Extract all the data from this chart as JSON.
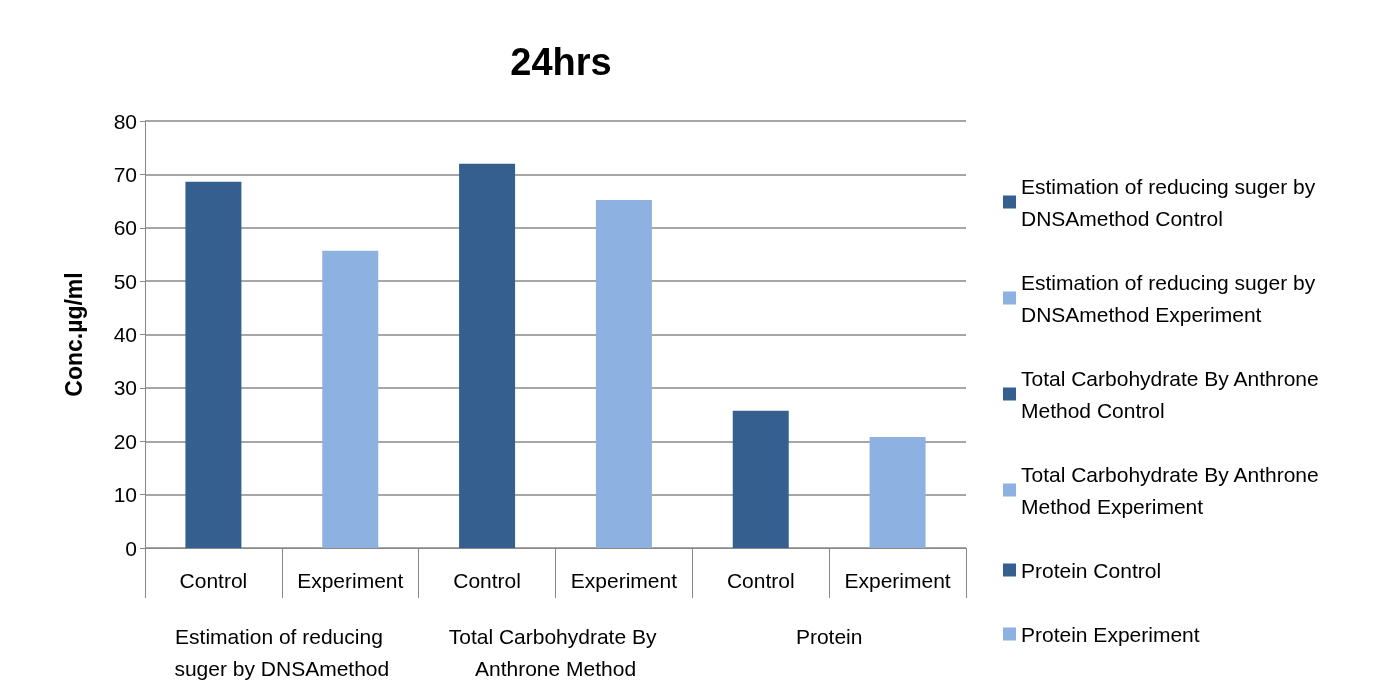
{
  "chart_data": {
    "type": "bar",
    "title": "24hrs",
    "ylabel": "Conc.µg/ml",
    "categories": [
      "Control",
      "Experiment",
      "Control",
      "Experiment",
      "Control",
      "Experiment"
    ],
    "annotations": [
      "Estimation of reducing suger by DNSAmethod",
      "Total Carbohydrate By Anthrone Method",
      "Protein"
    ],
    "series": [
      {
        "name": "Estimation of reducing suger by DNSAmethod Control",
        "color": "#355f8f",
        "values": [
          68.6,
          null,
          null,
          null,
          null,
          null
        ]
      },
      {
        "name": "Estimation of reducing suger by DNSAmethod Experiment",
        "color": "#8db2e2",
        "values": [
          null,
          55.7,
          null,
          null,
          null,
          null
        ]
      },
      {
        "name": "Total Carbohydrate By Anthrone Method Control",
        "color": "#355f8f",
        "values": [
          null,
          null,
          72.0,
          null,
          null,
          null
        ]
      },
      {
        "name": "Total Carbohydrate By Anthrone Method Experiment",
        "color": "#8db2e2",
        "values": [
          null,
          null,
          null,
          65.2,
          null,
          null
        ]
      },
      {
        "name": "Protein Control",
        "color": "#355f8f",
        "values": [
          null,
          null,
          null,
          null,
          25.7,
          null
        ]
      },
      {
        "name": "Protein Experiment",
        "color": "#8db2e2",
        "values": [
          null,
          null,
          null,
          null,
          null,
          20.8
        ]
      }
    ],
    "ylim": [
      0,
      80
    ],
    "yticks": [
      0,
      10,
      20,
      30,
      40,
      50,
      60,
      70,
      80
    ],
    "grid": "y",
    "legend": "right"
  }
}
